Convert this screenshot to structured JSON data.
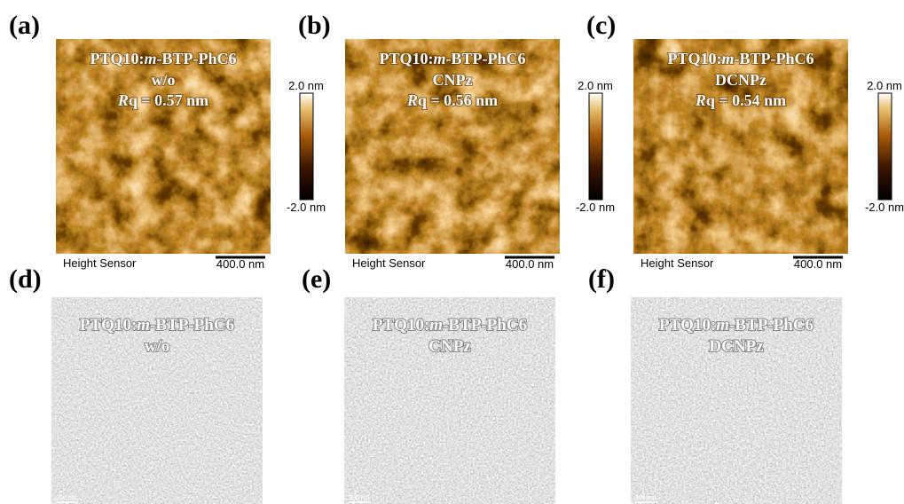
{
  "afm_panels": [
    {
      "label": "(a)",
      "sample": {
        "prefix": "PTQ10:",
        "italic": "m",
        "suffix": "-BTP-PhC6"
      },
      "additive": "w/o",
      "rq": {
        "symbol": "R",
        "text": "q = 0.57 nm"
      },
      "scale_max": "2.0 nm",
      "scale_min": "-2.0 nm",
      "channel": "Height Sensor",
      "scale_bar": "400.0 nm"
    },
    {
      "label": "(b)",
      "sample": {
        "prefix": "PTQ10:",
        "italic": "m",
        "suffix": "-BTP-PhC6"
      },
      "additive": "CNPz",
      "rq": {
        "symbol": "R",
        "text": "q = 0.56 nm"
      },
      "scale_max": "2.0 nm",
      "scale_min": "-2.0 nm",
      "channel": "Height Sensor",
      "scale_bar": "400.0 nm"
    },
    {
      "label": "(c)",
      "sample": {
        "prefix": "PTQ10:",
        "italic": "m",
        "suffix": "-BTP-PhC6"
      },
      "additive": "DCNPz",
      "rq": {
        "symbol": "R",
        "text": "q = 0.54 nm"
      },
      "scale_max": "2.0 nm",
      "scale_min": "-2.0 nm",
      "channel": "Height Sensor",
      "scale_bar": "400.0 nm"
    }
  ],
  "tem_panels": [
    {
      "label": "(d)",
      "sample": {
        "prefix": "PTQ10:",
        "italic": "m",
        "suffix": "-BTP-PhC6"
      },
      "additive": "w/o",
      "scale_bar": "200 nm"
    },
    {
      "label": "(e)",
      "sample": {
        "prefix": "PTQ10:",
        "italic": "m",
        "suffix": "-BTP-PhC6"
      },
      "additive": "CNPz",
      "scale_bar": "200 nm"
    },
    {
      "label": "(f)",
      "sample": {
        "prefix": "PTQ10:",
        "italic": "m",
        "suffix": "-BTP-PhC6"
      },
      "additive": "DCNPz",
      "scale_bar": "200 nm"
    }
  ]
}
